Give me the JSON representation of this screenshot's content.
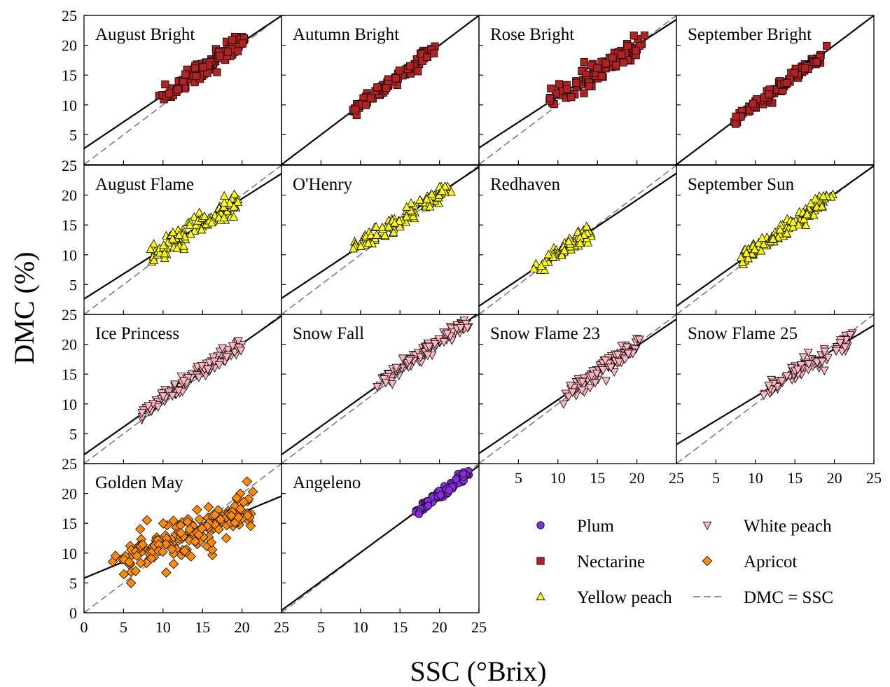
{
  "chart_data": {
    "type": "scatter",
    "xlabel": "SSC (°Brix)",
    "ylabel": "DMC (%)",
    "xlim": [
      0,
      25
    ],
    "ylim": [
      0,
      25
    ],
    "ticks": [
      0,
      5,
      10,
      15,
      20,
      25
    ],
    "reference_line": "DMC = SSC",
    "fruit_types": {
      "Plum": {
        "marker": "circle",
        "color": "#8a2be2"
      },
      "Nectarine": {
        "marker": "square",
        "color": "#b22222"
      },
      "Yellow peach": {
        "marker": "triangle-up",
        "color": "#ffff00"
      },
      "White peach": {
        "marker": "triangle-down",
        "color": "#ffb6c1"
      },
      "Apricot": {
        "marker": "diamond",
        "color": "#ff8c00"
      }
    },
    "legend": {
      "placement": "bottom-right",
      "items": [
        {
          "label": "Plum",
          "type": "Plum"
        },
        {
          "label": "White peach",
          "type": "White peach"
        },
        {
          "label": "Nectarine",
          "type": "Nectarine"
        },
        {
          "label": "Apricot",
          "type": "Apricot"
        },
        {
          "label": "Yellow peach",
          "type": "Yellow peach"
        },
        {
          "label": "DMC = SSC",
          "type": "reference"
        }
      ]
    },
    "panels": [
      {
        "name": "August Bright",
        "fruit": "Nectarine",
        "fit": {
          "intercept": 2.7,
          "slope": 0.89
        },
        "ssc_range": [
          10,
          20.5
        ],
        "scatter": 0.8,
        "n": 110
      },
      {
        "name": "Autumn Bright",
        "fruit": "Nectarine",
        "fit": {
          "intercept": 0.0,
          "slope": 1.0
        },
        "ssc_range": [
          8.5,
          19
        ],
        "scatter": 0.5,
        "n": 100
      },
      {
        "name": "Rose Bright",
        "fruit": "Nectarine",
        "fit": {
          "intercept": 2.8,
          "slope": 0.86
        },
        "ssc_range": [
          9,
          21
        ],
        "scatter": 0.9,
        "n": 110
      },
      {
        "name": "September Bright",
        "fruit": "Nectarine",
        "fit": {
          "intercept": 0.0,
          "slope": 1.0
        },
        "ssc_range": [
          7,
          19
        ],
        "scatter": 0.5,
        "n": 110
      },
      {
        "name": "August Flame",
        "fruit": "Yellow peach",
        "fit": {
          "intercept": 2.6,
          "slope": 0.84
        },
        "ssc_range": [
          8,
          20
        ],
        "scatter": 0.8,
        "n": 110
      },
      {
        "name": "O'Henry",
        "fruit": "Yellow peach",
        "fit": {
          "intercept": 2.7,
          "slope": 0.88
        },
        "ssc_range": [
          9,
          21
        ],
        "scatter": 0.8,
        "n": 110
      },
      {
        "name": "Redhaven",
        "fruit": "Yellow peach",
        "fit": {
          "intercept": 1.4,
          "slope": 0.89
        },
        "ssc_range": [
          7,
          14.5
        ],
        "scatter": 0.6,
        "n": 80
      },
      {
        "name": "September Sun",
        "fruit": "Yellow peach",
        "fit": {
          "intercept": 1.4,
          "slope": 0.94
        },
        "ssc_range": [
          8,
          19.5
        ],
        "scatter": 0.7,
        "n": 110
      },
      {
        "name": "Ice Princess",
        "fruit": "White peach",
        "fit": {
          "intercept": 1.5,
          "slope": 0.93
        },
        "ssc_range": [
          7,
          20
        ],
        "scatter": 0.7,
        "n": 110
      },
      {
        "name": "Snow Fall",
        "fruit": "White peach",
        "fit": {
          "intercept": 1.5,
          "slope": 0.95
        },
        "ssc_range": [
          12,
          23.5
        ],
        "scatter": 0.6,
        "n": 110
      },
      {
        "name": "Snow Flame 23",
        "fruit": "White peach",
        "fit": {
          "intercept": 1.7,
          "slope": 0.9
        },
        "ssc_range": [
          11,
          20
        ],
        "scatter": 0.7,
        "n": 110
      },
      {
        "name": "Snow Flame 25",
        "fruit": "White peach",
        "fit": {
          "intercept": 3.2,
          "slope": 0.8
        },
        "ssc_range": [
          11,
          22
        ],
        "scatter": 0.7,
        "n": 90
      },
      {
        "name": "Golden May",
        "fruit": "Apricot",
        "fit": {
          "intercept": 5.8,
          "slope": 0.55
        },
        "ssc_range": [
          4.5,
          21.5
        ],
        "scatter": 1.8,
        "n": 170
      },
      {
        "name": "Angeleno",
        "fruit": "Plum",
        "fit": {
          "intercept": 0.4,
          "slope": 0.97
        },
        "ssc_range": [
          17,
          23.5
        ],
        "scatter": 0.4,
        "n": 120
      }
    ]
  }
}
